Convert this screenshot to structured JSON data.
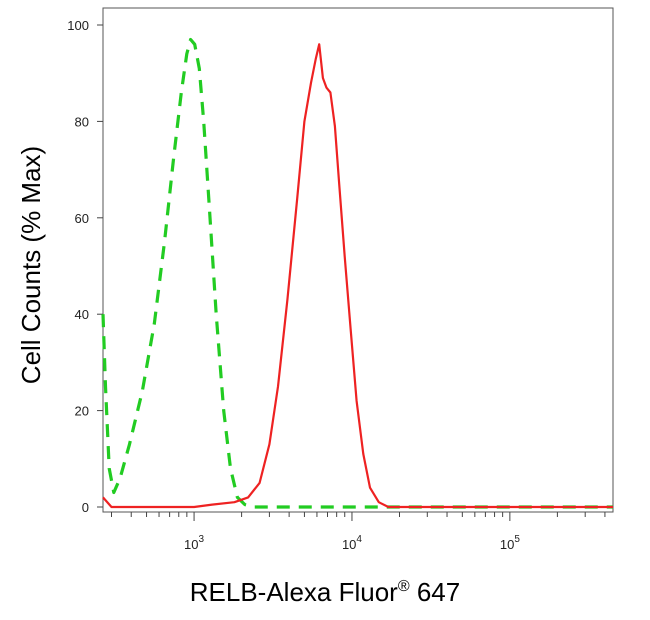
{
  "chart_data": {
    "type": "line",
    "xlabel": "RELB-Alexa Fluor",
    "xlabel_sup": "®",
    "xlabel_suffix": " 647",
    "ylabel": "Cell Counts (% Max)",
    "xscale": "log",
    "xlim": [
      265,
      450000
    ],
    "ylim": [
      0,
      100
    ],
    "yticks": [
      0,
      20,
      40,
      60,
      80,
      100
    ],
    "ytick_labels": [
      "0",
      "20",
      "40",
      "60",
      "80",
      "100"
    ],
    "xticks_major": [
      {
        "value": 1000,
        "base": "10",
        "exp": "3"
      },
      {
        "value": 10000,
        "base": "10",
        "exp": "4"
      },
      {
        "value": 100000,
        "base": "10",
        "exp": "5"
      }
    ],
    "grid": false,
    "legend": "none",
    "series": [
      {
        "color": "#22cc22",
        "style": "dashed",
        "points": [
          [
            265,
            40
          ],
          [
            275,
            25
          ],
          [
            290,
            8
          ],
          [
            310,
            3
          ],
          [
            340,
            6
          ],
          [
            390,
            13
          ],
          [
            470,
            24
          ],
          [
            560,
            38
          ],
          [
            650,
            55
          ],
          [
            740,
            72
          ],
          [
            830,
            86
          ],
          [
            900,
            94
          ],
          [
            950,
            97
          ],
          [
            1010,
            96
          ],
          [
            1080,
            91
          ],
          [
            1150,
            80
          ],
          [
            1250,
            62
          ],
          [
            1380,
            40
          ],
          [
            1540,
            20
          ],
          [
            1700,
            8
          ],
          [
            1880,
            2
          ],
          [
            2100,
            0.5
          ],
          [
            2400,
            0
          ],
          [
            3000,
            0
          ],
          [
            6000,
            0
          ],
          [
            10000,
            0
          ],
          [
            30000,
            0
          ],
          [
            100000,
            0
          ],
          [
            450000,
            0
          ]
        ]
      },
      {
        "color": "#ee2222",
        "style": "solid",
        "points": [
          [
            265,
            2
          ],
          [
            300,
            0
          ],
          [
            400,
            0
          ],
          [
            1000,
            0
          ],
          [
            1300,
            0.5
          ],
          [
            1800,
            1
          ],
          [
            2200,
            2
          ],
          [
            2600,
            5
          ],
          [
            3000,
            13
          ],
          [
            3400,
            25
          ],
          [
            3900,
            43
          ],
          [
            4500,
            64
          ],
          [
            5000,
            80
          ],
          [
            5500,
            88
          ],
          [
            5900,
            93
          ],
          [
            6200,
            96
          ],
          [
            6550,
            89
          ],
          [
            6900,
            87
          ],
          [
            7300,
            86
          ],
          [
            7800,
            79
          ],
          [
            8300,
            67
          ],
          [
            9000,
            52
          ],
          [
            9800,
            37
          ],
          [
            10700,
            22
          ],
          [
            11800,
            11
          ],
          [
            13000,
            4
          ],
          [
            14800,
            1
          ],
          [
            17000,
            0
          ],
          [
            30000,
            0
          ],
          [
            100000,
            0
          ],
          [
            450000,
            0
          ]
        ]
      }
    ]
  }
}
